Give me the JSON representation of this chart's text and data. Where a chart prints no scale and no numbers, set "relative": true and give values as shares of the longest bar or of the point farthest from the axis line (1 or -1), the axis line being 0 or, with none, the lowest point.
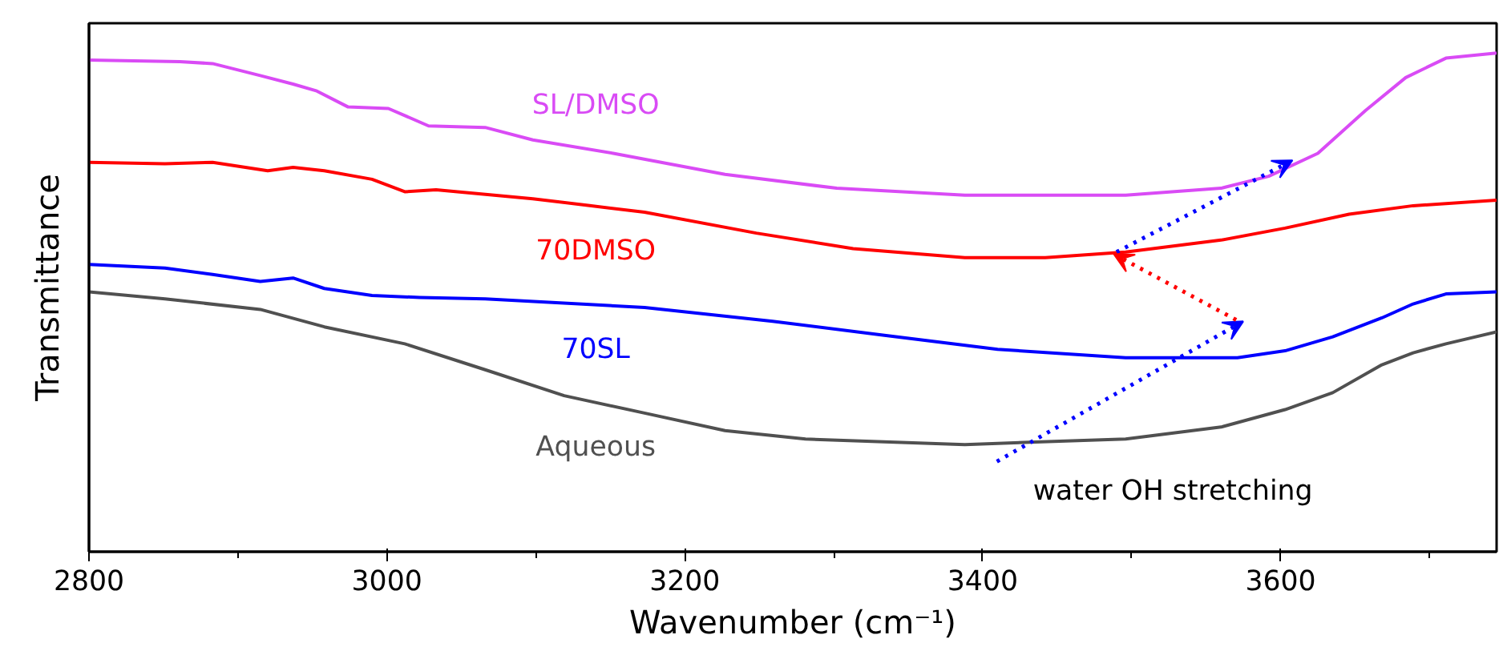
{
  "chart_data": {
    "type": "line",
    "relative": true,
    "xlabel": "Wavenumber (cm⁻¹)",
    "ylabel": "Transmittance",
    "xlim": [
      2800,
      3745
    ],
    "xticks": [
      2800,
      3000,
      3200,
      3400,
      3600
    ],
    "grid": false,
    "marker": "none",
    "line_style": "solid",
    "annotations": [
      "water OH stretching"
    ],
    "series": [
      {
        "name": "SL/DMSO",
        "color": "#d94bf5",
        "x": [
          2800,
          2861,
          2883,
          2915,
          2937,
          2953,
          2974,
          3001,
          3028,
          3066,
          3098,
          3152,
          3227,
          3302,
          3388,
          3496,
          3560,
          3592,
          3625,
          3657,
          3684,
          3711,
          3745
        ],
        "values": [
          0.986,
          0.983,
          0.979,
          0.955,
          0.938,
          0.924,
          0.892,
          0.889,
          0.854,
          0.851,
          0.826,
          0.799,
          0.757,
          0.729,
          0.715,
          0.715,
          0.729,
          0.753,
          0.799,
          0.885,
          0.951,
          0.99,
          1.0
        ]
      },
      {
        "name": "70DMSO",
        "color": "#ff0000",
        "x": [
          2800,
          2851,
          2883,
          2920,
          2937,
          2958,
          2990,
          3012,
          3033,
          3098,
          3173,
          3248,
          3313,
          3388,
          3442,
          3496,
          3560,
          3603,
          3646,
          3689,
          3745
        ],
        "values": [
          0.781,
          0.778,
          0.781,
          0.764,
          0.771,
          0.764,
          0.747,
          0.722,
          0.726,
          0.708,
          0.681,
          0.639,
          0.608,
          0.59,
          0.59,
          0.601,
          0.625,
          0.649,
          0.677,
          0.694,
          0.705
        ]
      },
      {
        "name": "70SL",
        "color": "#0000ff",
        "x": [
          2800,
          2851,
          2883,
          2915,
          2937,
          2958,
          2990,
          3022,
          3066,
          3173,
          3259,
          3334,
          3410,
          3496,
          3571,
          3603,
          3635,
          3668,
          3689,
          3711,
          3745
        ],
        "values": [
          0.576,
          0.569,
          0.556,
          0.542,
          0.549,
          0.528,
          0.514,
          0.51,
          0.507,
          0.49,
          0.462,
          0.434,
          0.406,
          0.389,
          0.389,
          0.403,
          0.431,
          0.469,
          0.497,
          0.517,
          0.521
        ]
      },
      {
        "name": "Aqueous",
        "color": "#505050",
        "x": [
          2800,
          2851,
          2915,
          2958,
          3012,
          3066,
          3119,
          3173,
          3227,
          3281,
          3388,
          3496,
          3560,
          3603,
          3635,
          3668,
          3689,
          3711,
          3745
        ],
        "values": [
          0.521,
          0.507,
          0.486,
          0.451,
          0.417,
          0.365,
          0.313,
          0.278,
          0.243,
          0.226,
          0.215,
          0.226,
          0.25,
          0.285,
          0.319,
          0.375,
          0.399,
          0.417,
          0.441
        ]
      }
    ]
  }
}
